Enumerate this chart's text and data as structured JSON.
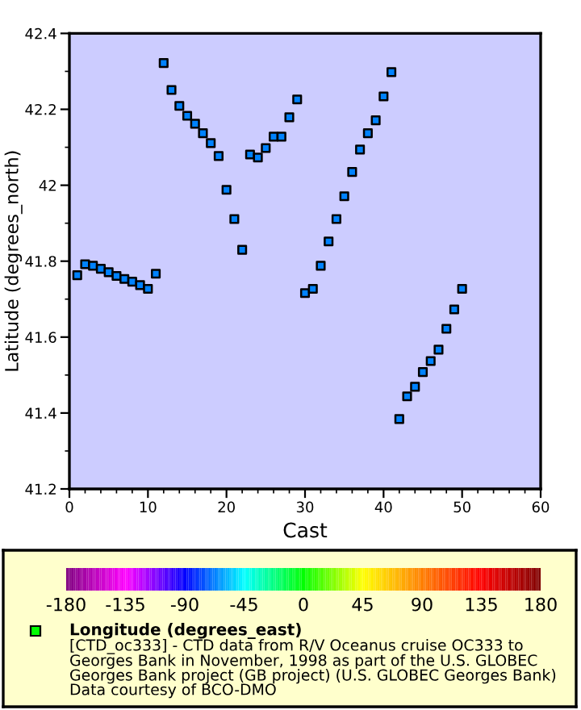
{
  "chart_data": {
    "type": "scatter",
    "xlabel": "Cast",
    "ylabel": "Latitude (degrees_north)",
    "clabel": "Longitude (degrees_east)",
    "x": [
      1,
      2,
      3,
      4,
      5,
      6,
      7,
      8,
      9,
      10,
      11,
      12,
      13,
      14,
      15,
      16,
      17,
      18,
      19,
      20,
      21,
      22,
      23,
      24,
      25,
      26,
      27,
      28,
      29,
      30,
      31,
      32,
      33,
      34,
      35,
      36,
      37,
      38,
      39,
      40,
      41,
      42,
      43,
      44,
      45,
      46,
      47,
      48,
      49,
      50
    ],
    "values": [
      41.763,
      41.792,
      41.788,
      41.78,
      41.771,
      41.761,
      41.753,
      41.746,
      41.737,
      41.727,
      41.767,
      42.322,
      42.251,
      42.209,
      42.183,
      42.162,
      42.137,
      42.111,
      42.077,
      41.988,
      41.911,
      41.83,
      42.081,
      42.073,
      42.098,
      42.128,
      42.128,
      42.179,
      42.226,
      41.716,
      41.727,
      41.788,
      41.852,
      41.911,
      41.971,
      42.035,
      42.094,
      42.137,
      42.171,
      42.234,
      42.298,
      41.384,
      41.444,
      41.469,
      41.508,
      41.537,
      41.567,
      41.622,
      41.673,
      41.727
    ],
    "cvalues": [
      -67,
      -67,
      -67,
      -67,
      -67,
      -67,
      -67,
      -67,
      -67,
      -67,
      -67,
      -67,
      -67,
      -67,
      -67,
      -67,
      -67,
      -67,
      -67,
      -67,
      -67,
      -67,
      -67,
      -67,
      -67,
      -67,
      -67,
      -67,
      -67,
      -67,
      -67,
      -67,
      -67,
      -67,
      -67,
      -67,
      -67,
      -67,
      -67,
      -67,
      -67,
      -67,
      -67,
      -67,
      -67,
      -67,
      -67,
      -67,
      -67,
      -67
    ],
    "clim": [
      -180,
      180
    ],
    "cticks": [
      -180,
      -135,
      -90,
      -45,
      0,
      45,
      90,
      135,
      180
    ],
    "marker": "square",
    "grid": false,
    "legend": false,
    "xlim": [
      0,
      60
    ],
    "xticks": [
      0,
      10,
      20,
      30,
      40,
      50,
      60
    ],
    "ylim": [
      41.2,
      42.4
    ],
    "yticks": [
      41.2,
      41.4,
      41.6,
      41.8,
      42,
      42.2,
      42.4
    ],
    "annotations": [
      "[CTD_oc333] - CTD data from R/V Oceanus cruise OC333 to\nGeorges Bank in November, 1998 as part of the U.S. GLOBEC\nGeorges Bank project (GB project) (U.S. GLOBEC Georges Bank)",
      "Data courtesy of BCO-DMO"
    ]
  }
}
